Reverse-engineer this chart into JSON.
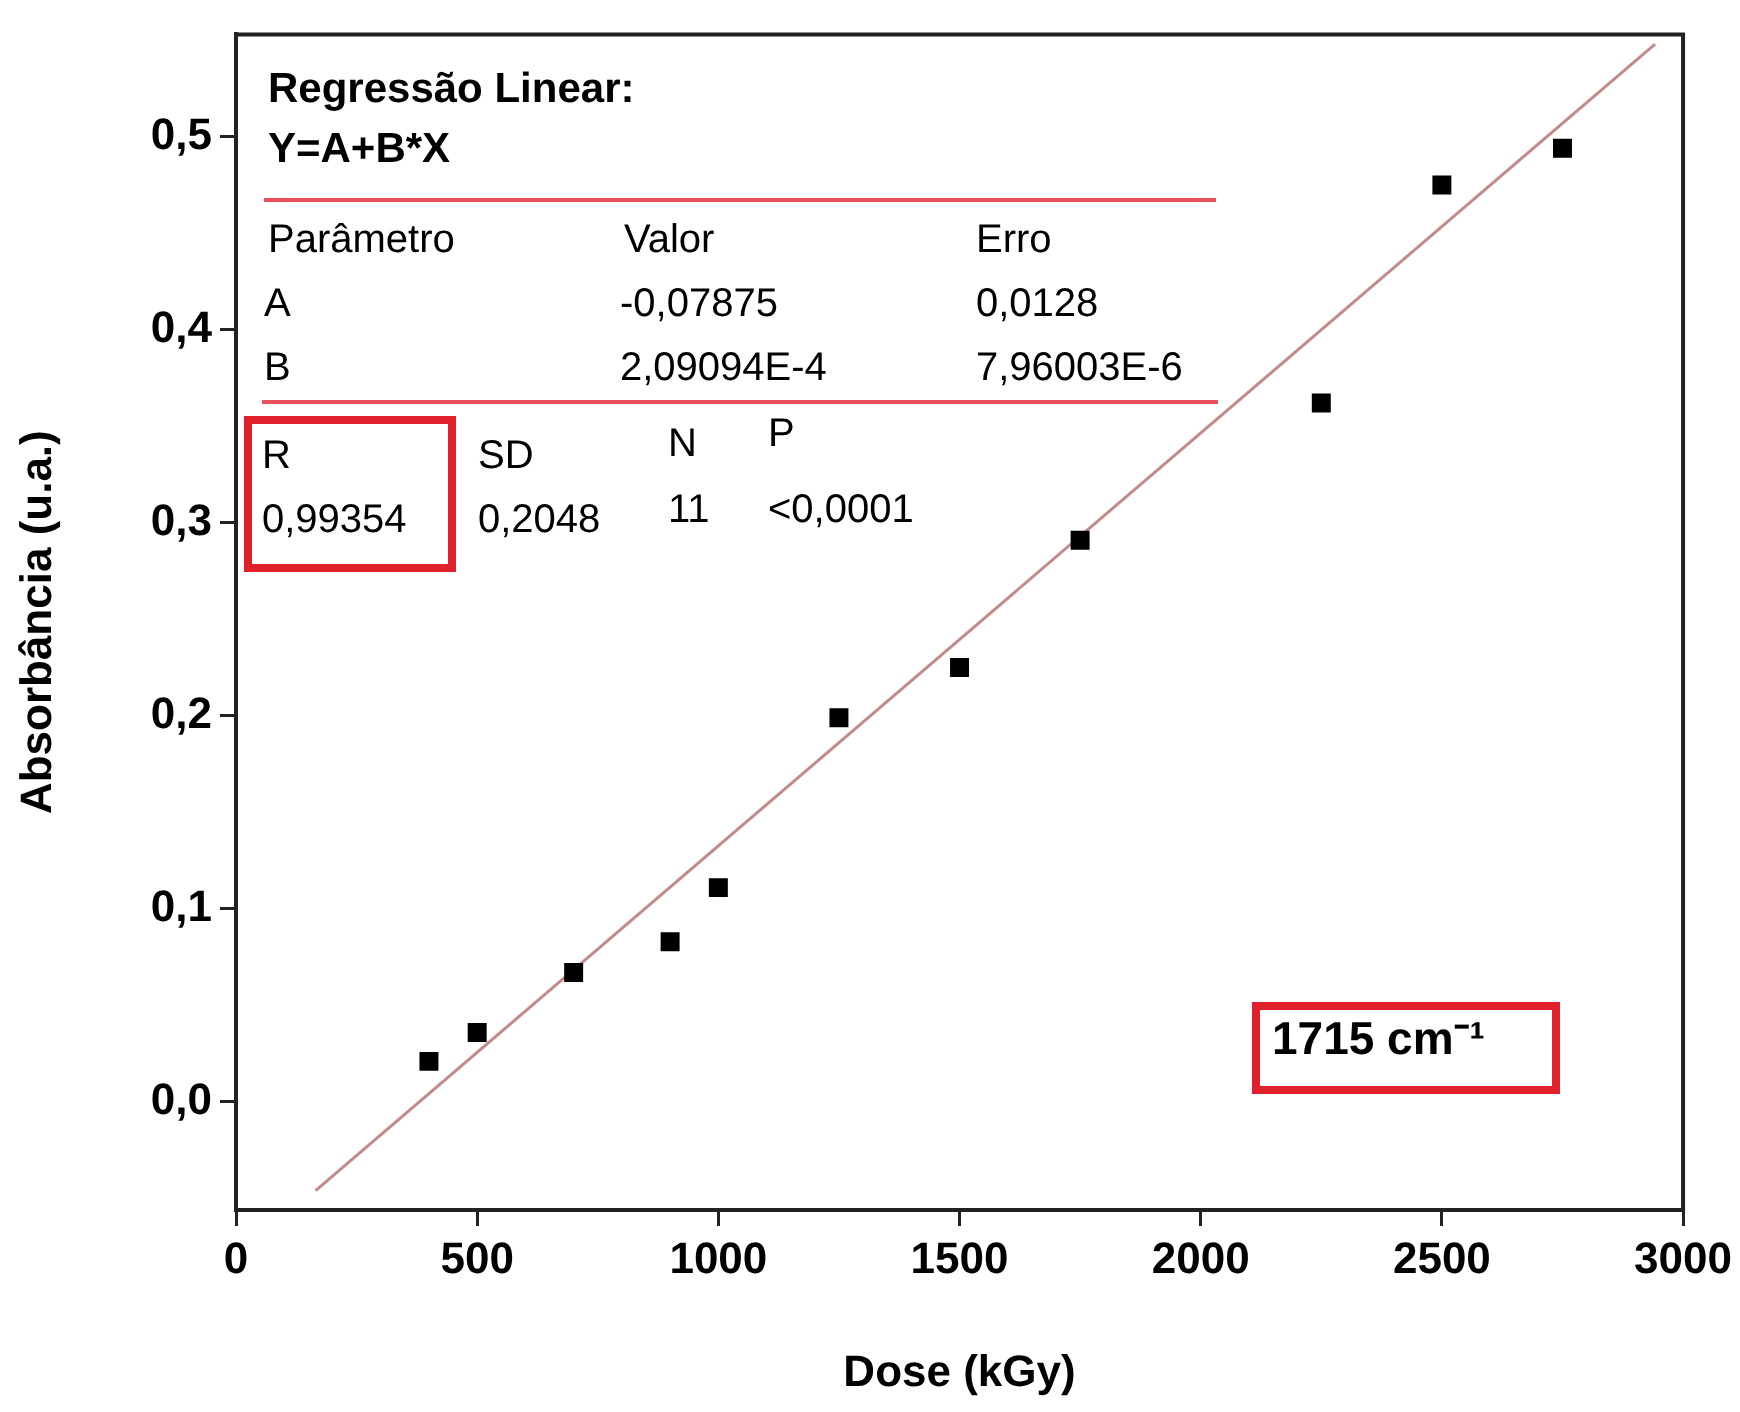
{
  "chart_data": {
    "type": "scatter",
    "xlabel": "Dose (kGy)",
    "ylabel": "Absorbância (u.a.)",
    "xlim": [
      0,
      3000
    ],
    "xticks": [
      0,
      500,
      1000,
      1500,
      2000,
      2500,
      3000
    ],
    "ylim": [
      -0.056,
      0.553
    ],
    "yticks": [
      {
        "value": 0,
        "label": "0,0"
      },
      {
        "value": 0.1,
        "label": "0,1"
      },
      {
        "value": 0.2,
        "label": "0,2"
      },
      {
        "value": 0.3,
        "label": "0,3"
      },
      {
        "value": 0.4,
        "label": "0,4"
      },
      {
        "value": 0.5,
        "label": "0,5"
      }
    ],
    "grid": false,
    "legend": false,
    "marker": "square",
    "series": [
      {
        "type": "scatter",
        "color": "#000000",
        "x": [
          400,
          500,
          700,
          900,
          1000,
          1250,
          1500,
          1750,
          2250,
          2500,
          2750
        ],
        "values": [
          0.021,
          0.036,
          0.067,
          0.083,
          0.111,
          0.199,
          0.225,
          0.291,
          0.362,
          0.475,
          0.494
        ]
      },
      {
        "type": "line",
        "color": "#c48a8a",
        "marker": "none",
        "x": [
          165,
          2942
        ],
        "values": [
          -0.046,
          0.548
        ]
      }
    ],
    "annotations": [
      "Regressão Linear:",
      "Y=A+B*X",
      "Parâmetro",
      "Valor",
      "Erro",
      "A",
      "-0,07875",
      "0,0128",
      "B",
      "2,09094E-4",
      "7,96003E-6",
      "R",
      "0,99354",
      "SD",
      "0,2048",
      "N",
      "11",
      "P",
      "<0,0001",
      "1715 cm⁻¹"
    ]
  }
}
